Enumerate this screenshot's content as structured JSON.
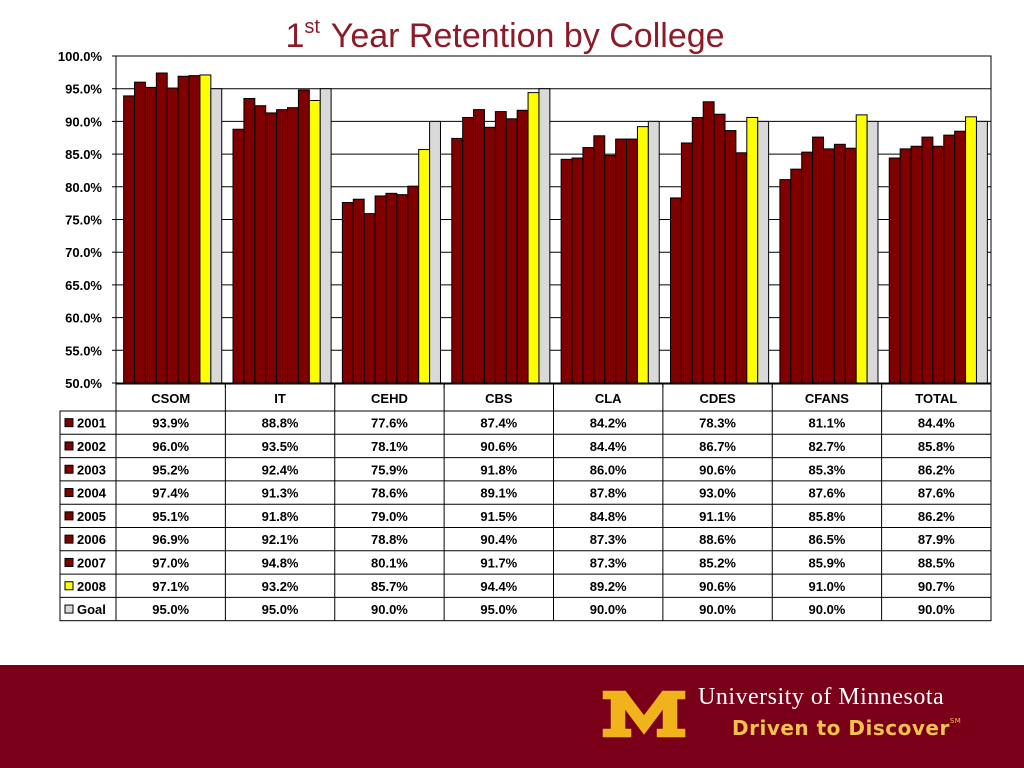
{
  "title": {
    "main": "1",
    "sup": "st",
    "rest": "Year Retention by College"
  },
  "footer": {
    "university": "University of Minnesota",
    "tagline": "Driven to Discover",
    "tagline_mark": "SM"
  },
  "colors": {
    "year_bar": "#800000",
    "latest_bar": "#ffff00",
    "goal_bar": "#d9d9d9",
    "title": "#8c1b2a",
    "footer_bg": "#7a0019",
    "logo_gold": "#f1b31c"
  },
  "chart_data": {
    "type": "bar",
    "title": "1st Year Retention by College",
    "categories": [
      "CSOM",
      "IT",
      "CEHD",
      "CBS",
      "CLA",
      "CDES",
      "CFANS",
      "TOTAL"
    ],
    "ylim": [
      50,
      100
    ],
    "yticks": [
      "100.0%",
      "95.0%",
      "90.0%",
      "85.0%",
      "80.0%",
      "75.0%",
      "70.0%",
      "65.0%",
      "60.0%",
      "55.0%",
      "50.0%"
    ],
    "grid": true,
    "legend": "data-table",
    "series": [
      {
        "name": "2001",
        "color": "#800000",
        "values": [
          93.9,
          88.8,
          77.6,
          87.4,
          84.2,
          78.3,
          81.1,
          84.4
        ],
        "labels": [
          "93.9%",
          "88.8%",
          "77.6%",
          "87.4%",
          "84.2%",
          "78.3%",
          "81.1%",
          "84.4%"
        ]
      },
      {
        "name": "2002",
        "color": "#800000",
        "values": [
          96.0,
          93.5,
          78.1,
          90.6,
          84.4,
          86.7,
          82.7,
          85.8
        ],
        "labels": [
          "96.0%",
          "93.5%",
          "78.1%",
          "90.6%",
          "84.4%",
          "86.7%",
          "82.7%",
          "85.8%"
        ]
      },
      {
        "name": "2003",
        "color": "#800000",
        "values": [
          95.2,
          92.4,
          75.9,
          91.8,
          86.0,
          90.6,
          85.3,
          86.2
        ],
        "labels": [
          "95.2%",
          "92.4%",
          "75.9%",
          "91.8%",
          "86.0%",
          "90.6%",
          "85.3%",
          "86.2%"
        ]
      },
      {
        "name": "2004",
        "color": "#800000",
        "values": [
          97.4,
          91.3,
          78.6,
          89.1,
          87.8,
          93.0,
          87.6,
          87.6
        ],
        "labels": [
          "97.4%",
          "91.3%",
          "78.6%",
          "89.1%",
          "87.8%",
          "93.0%",
          "87.6%",
          "87.6%"
        ]
      },
      {
        "name": "2005",
        "color": "#800000",
        "values": [
          95.1,
          91.8,
          79.0,
          91.5,
          84.8,
          91.1,
          85.8,
          86.2
        ],
        "labels": [
          "95.1%",
          "91.8%",
          "79.0%",
          "91.5%",
          "84.8%",
          "91.1%",
          "85.8%",
          "86.2%"
        ]
      },
      {
        "name": "2006",
        "color": "#800000",
        "values": [
          96.9,
          92.1,
          78.8,
          90.4,
          87.3,
          88.6,
          86.5,
          87.9
        ],
        "labels": [
          "96.9%",
          "92.1%",
          "78.8%",
          "90.4%",
          "87.3%",
          "88.6%",
          "86.5%",
          "87.9%"
        ]
      },
      {
        "name": "2007",
        "color": "#800000",
        "values": [
          97.0,
          94.8,
          80.1,
          91.7,
          87.3,
          85.2,
          85.9,
          88.5
        ],
        "labels": [
          "97.0%",
          "94.8%",
          "80.1%",
          "91.7%",
          "87.3%",
          "85.2%",
          "85.9%",
          "88.5%"
        ]
      },
      {
        "name": "2008",
        "color": "#ffff00",
        "values": [
          97.1,
          93.2,
          85.7,
          94.4,
          89.2,
          90.6,
          91.0,
          90.7
        ],
        "labels": [
          "97.1%",
          "93.2%",
          "85.7%",
          "94.4%",
          "89.2%",
          "90.6%",
          "91.0%",
          "90.7%"
        ]
      },
      {
        "name": "Goal",
        "color": "#d9d9d9",
        "values": [
          95.0,
          95.0,
          90.0,
          95.0,
          90.0,
          90.0,
          90.0,
          90.0
        ],
        "labels": [
          "95.0%",
          "95.0%",
          "90.0%",
          "95.0%",
          "90.0%",
          "90.0%",
          "90.0%",
          "90.0%"
        ]
      }
    ]
  }
}
